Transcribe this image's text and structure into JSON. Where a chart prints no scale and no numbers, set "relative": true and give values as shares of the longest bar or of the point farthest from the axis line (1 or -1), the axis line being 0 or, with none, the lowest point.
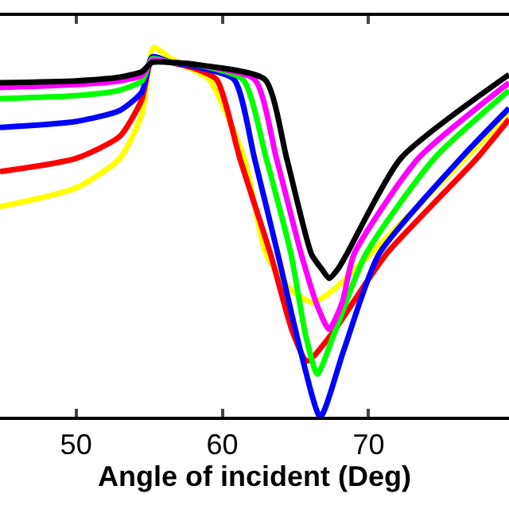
{
  "chart_data": {
    "type": "line",
    "relative": true,
    "xlabel": "Angle of incident (Deg)",
    "xlim": [
      44.8,
      79.6
    ],
    "xticks": [
      50,
      60,
      70
    ],
    "tick_labels": "x",
    "line_style": "solid",
    "marker": "none",
    "series": [
      {
        "color": "#ffff00",
        "x": [
          44.8,
          50,
          53,
          54.5,
          55.3,
          56.5,
          58,
          59.1,
          61.5,
          63.0,
          64.8,
          66.2,
          67.8,
          70.1,
          76.6,
          79.6
        ],
        "values": [
          0.569,
          0.62,
          0.7,
          0.82,
          1.0,
          0.97,
          0.94,
          0.914,
          0.7,
          0.44,
          0.34,
          0.31,
          0.35,
          0.44,
          0.7,
          0.82
        ]
      },
      {
        "color": "#ff0000",
        "x": [
          44.8,
          50,
          53,
          54.5,
          55.2,
          56.5,
          58,
          59.6,
          61.2,
          63.3,
          64.8,
          65.8,
          67.4,
          71.2,
          77.4,
          79.6
        ],
        "values": [
          0.664,
          0.7,
          0.76,
          0.86,
          0.97,
          0.96,
          0.945,
          0.914,
          0.7,
          0.44,
          0.23,
          0.151,
          0.22,
          0.44,
          0.7,
          0.806
        ]
      },
      {
        "color": "#0000ff",
        "x": [
          44.8,
          50,
          53,
          54.5,
          55.2,
          56.5,
          58,
          60.8,
          62.2,
          63.8,
          65.4,
          66.7,
          68.3,
          70.7,
          76.3,
          79.6
        ],
        "values": [
          0.784,
          0.8,
          0.83,
          0.88,
          0.975,
          0.96,
          0.95,
          0.914,
          0.7,
          0.44,
          0.17,
          0.0,
          0.18,
          0.44,
          0.7,
          0.836
        ]
      },
      {
        "color": "#00ff00",
        "x": [
          44.8,
          50,
          53,
          54.5,
          55.2,
          56.5,
          58,
          61.4,
          63.0,
          64.7,
          65.7,
          66.5,
          67.6,
          69.8,
          74.5,
          79.6
        ],
        "values": [
          0.862,
          0.87,
          0.885,
          0.91,
          0.97,
          0.96,
          0.955,
          0.914,
          0.7,
          0.44,
          0.22,
          0.116,
          0.22,
          0.44,
          0.7,
          0.884
        ]
      },
      {
        "color": "#ff00ff",
        "x": [
          44.8,
          50,
          53,
          54.5,
          55.2,
          56.5,
          58,
          62.2,
          63.7,
          65.4,
          66.5,
          67.3,
          68.2,
          69.0,
          73.4,
          79.6
        ],
        "values": [
          0.892,
          0.9,
          0.91,
          0.925,
          0.965,
          0.96,
          0.955,
          0.914,
          0.7,
          0.44,
          0.3,
          0.237,
          0.31,
          0.44,
          0.7,
          0.905
        ]
      },
      {
        "color": "#000000",
        "x": [
          44.8,
          50,
          53,
          54.5,
          55.2,
          56.5,
          58,
          62.9,
          64.4,
          66.1,
          66.8,
          67.3,
          67.9,
          68.5,
          72.2,
          79.6
        ],
        "values": [
          0.905,
          0.91,
          0.92,
          0.935,
          0.96,
          0.96,
          0.955,
          0.914,
          0.7,
          0.44,
          0.4,
          0.375,
          0.4,
          0.44,
          0.7,
          0.927
        ]
      }
    ]
  }
}
